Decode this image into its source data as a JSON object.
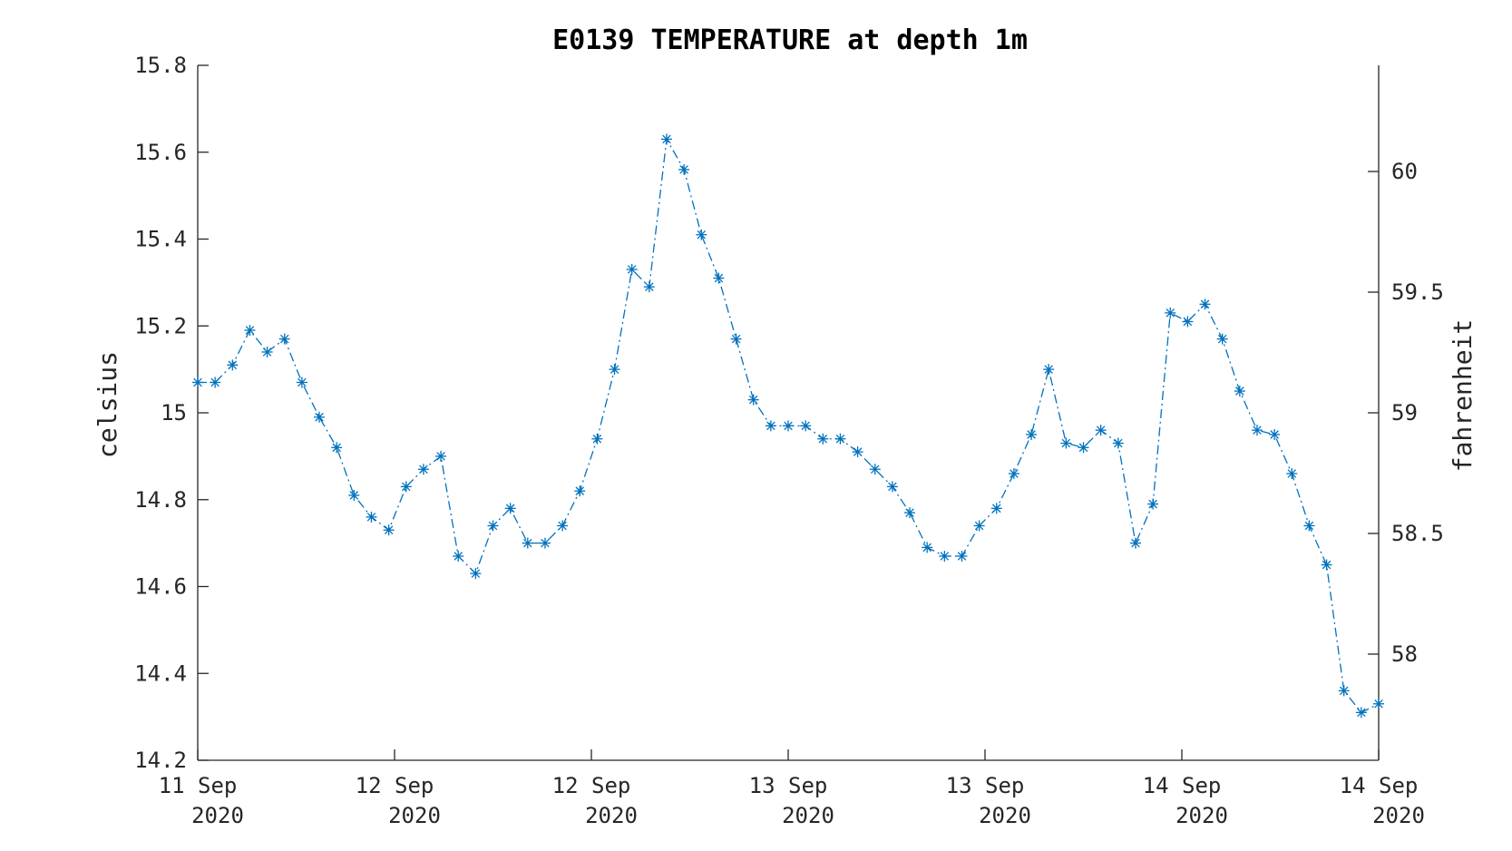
{
  "chart_data": {
    "type": "line",
    "title": "E0139 TEMPERATURE at depth 1m",
    "ylabel": "celsius",
    "y2label": "fahrenheit",
    "ylim": [
      14.2,
      15.8
    ],
    "y2lim": [
      57.56,
      60.44
    ],
    "yticks": [
      "15.8",
      "15.6",
      "15.4",
      "15.2",
      "15",
      "14.8",
      "14.6",
      "14.4",
      "14.2"
    ],
    "y2ticks": [
      "60",
      "59.5",
      "59",
      "58.5",
      "58"
    ],
    "xticks": [
      {
        "line1": "11 Sep",
        "line2": "2020"
      },
      {
        "line1": "12 Sep",
        "line2": "2020"
      },
      {
        "line1": "12 Sep",
        "line2": "2020"
      },
      {
        "line1": "13 Sep",
        "line2": "2020"
      },
      {
        "line1": "13 Sep",
        "line2": "2020"
      },
      {
        "line1": "14 Sep",
        "line2": "2020"
      },
      {
        "line1": "14 Sep",
        "line2": "2020"
      }
    ],
    "series_color": "#0072BD",
    "marker": "asterisk",
    "line_style": "dash-dot",
    "grid": false,
    "series": [
      {
        "values": [
          15.07,
          15.07,
          15.11,
          15.19,
          15.14,
          15.17,
          15.07,
          14.99,
          14.92,
          14.81,
          14.76,
          14.73,
          14.83,
          14.87,
          14.9,
          14.67,
          14.63,
          14.74,
          14.78,
          14.7,
          14.7,
          14.74,
          14.82,
          14.94,
          15.1,
          15.33,
          15.29,
          15.63,
          15.56,
          15.41,
          15.31,
          15.17,
          15.03,
          14.97,
          14.97,
          14.97,
          14.94,
          14.94,
          14.91,
          14.87,
          14.83,
          14.77,
          14.69,
          14.67,
          14.67,
          14.74,
          14.78,
          14.86,
          14.95,
          15.1,
          14.93,
          14.92,
          14.96,
          14.93,
          14.7,
          14.79,
          15.23,
          15.21,
          15.25,
          15.17,
          15.05,
          14.96,
          14.95,
          14.86,
          14.74,
          14.65,
          14.36,
          14.31,
          14.33
        ]
      }
    ]
  }
}
